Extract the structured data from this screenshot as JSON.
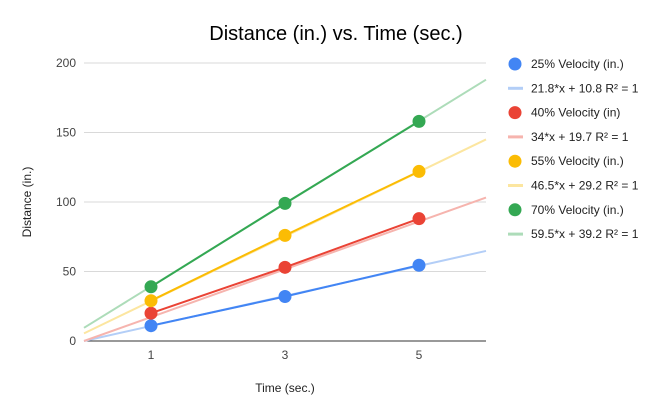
{
  "chart_data": {
    "type": "scatter",
    "title": "Distance (in.) vs. Time (sec.)",
    "xlabel": "Time (sec.)",
    "ylabel": "Distance (in.)",
    "xlim": [
      0,
      6
    ],
    "ylim": [
      0,
      200
    ],
    "xticks": [
      "1",
      "3",
      "5"
    ],
    "xtick_values": [
      1,
      3,
      5
    ],
    "yticks": [
      "0",
      "50",
      "100",
      "150",
      "200"
    ],
    "ytick_values": [
      0,
      50,
      100,
      150,
      200
    ],
    "grid": true,
    "legend_position": "right",
    "series": [
      {
        "name": "25% Velocity (in.)",
        "color": "#4285F4",
        "trend_color": "#B3CEF7",
        "points": [
          [
            1,
            11
          ],
          [
            3,
            32
          ],
          [
            5,
            54.5
          ]
        ],
        "trendline": {
          "label": "21.8*x + 10.8 R² = 1",
          "slope": 10.8,
          "intercept": 0
        }
      },
      {
        "name": "40% Velocity (in)",
        "color": "#EA4335",
        "trend_color": "#F6B4AE",
        "points": [
          [
            1,
            20
          ],
          [
            3,
            53
          ],
          [
            5,
            88
          ]
        ],
        "trendline": {
          "label": "34*x + 19.7 R² = 1",
          "slope": 17.2,
          "intercept": 0
        }
      },
      {
        "name": "55% Velocity (in.)",
        "color": "#FBBC04",
        "trend_color": "#FCE6A0",
        "points": [
          [
            1,
            29
          ],
          [
            3,
            76
          ],
          [
            5,
            122
          ]
        ],
        "trendline": {
          "label": "46.5*x + 29.2 R² = 1",
          "slope": 23.25,
          "intercept": 5.5
        }
      },
      {
        "name": "70% Velocity (in.)",
        "color": "#34A853",
        "trend_color": "#ADDCB9",
        "points": [
          [
            1,
            39
          ],
          [
            3,
            99
          ],
          [
            5,
            158
          ]
        ],
        "trendline": {
          "label": "59.5*x + 39.2 R² = 1",
          "slope": 29.75,
          "intercept": 9.5
        }
      }
    ]
  }
}
